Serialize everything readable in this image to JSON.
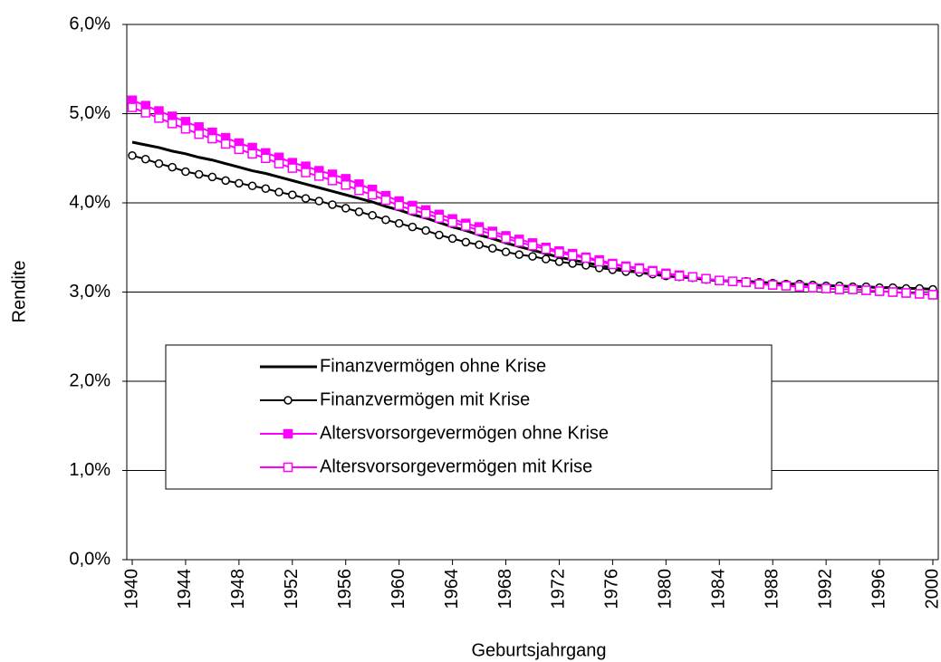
{
  "chart_data": {
    "type": "line",
    "x_label": "Geburtsjahrgang",
    "y_label": "Rendite",
    "x": [
      1940,
      1941,
      1942,
      1943,
      1944,
      1945,
      1946,
      1947,
      1948,
      1949,
      1950,
      1951,
      1952,
      1953,
      1954,
      1955,
      1956,
      1957,
      1958,
      1959,
      1960,
      1961,
      1962,
      1963,
      1964,
      1965,
      1966,
      1967,
      1968,
      1969,
      1970,
      1971,
      1972,
      1973,
      1974,
      1975,
      1976,
      1977,
      1978,
      1979,
      1980,
      1981,
      1982,
      1983,
      1984,
      1985,
      1986,
      1987,
      1988,
      1989,
      1990,
      1991,
      1992,
      1993,
      1994,
      1995,
      1996,
      1997,
      1998,
      1999,
      2000
    ],
    "xlim": [
      1940,
      2000
    ],
    "xticks": [
      1940,
      1944,
      1948,
      1952,
      1956,
      1960,
      1964,
      1968,
      1972,
      1976,
      1980,
      1984,
      1988,
      1992,
      1996,
      2000
    ],
    "ylim": [
      0,
      6
    ],
    "yticks": [
      {
        "value": 0,
        "label": "0,0%"
      },
      {
        "value": 1,
        "label": "1,0%"
      },
      {
        "value": 2,
        "label": "2,0%"
      },
      {
        "value": 3,
        "label": "3,0%"
      },
      {
        "value": 4,
        "label": "4,0%"
      },
      {
        "value": 5,
        "label": "5,0%"
      },
      {
        "value": 6,
        "label": "6,0%"
      }
    ],
    "grid": true,
    "series": [
      {
        "name": "Finanzvermögen ohne Krise",
        "color": "#000000",
        "marker": "none",
        "values": [
          4.68,
          4.65,
          4.62,
          4.58,
          4.55,
          4.51,
          4.48,
          4.44,
          4.4,
          4.36,
          4.33,
          4.29,
          4.25,
          4.21,
          4.17,
          4.13,
          4.09,
          4.05,
          4.01,
          3.96,
          3.92,
          3.87,
          3.83,
          3.78,
          3.73,
          3.69,
          3.64,
          3.6,
          3.55,
          3.51,
          3.47,
          3.43,
          3.39,
          3.36,
          3.33,
          3.3,
          3.27,
          3.25,
          3.22,
          3.2,
          3.18,
          3.17,
          3.16,
          3.14,
          3.13,
          3.12,
          3.12,
          3.11,
          3.1,
          3.09,
          3.09,
          3.08,
          3.07,
          3.07,
          3.06,
          3.06,
          3.05,
          3.05,
          3.04,
          3.04,
          3.03
        ]
      },
      {
        "name": "Finanzvermögen mit Krise",
        "color": "#000000",
        "marker": "circle",
        "values": [
          4.53,
          4.49,
          4.44,
          4.4,
          4.35,
          4.32,
          4.29,
          4.25,
          4.22,
          4.19,
          4.16,
          4.12,
          4.09,
          4.05,
          4.02,
          3.98,
          3.94,
          3.9,
          3.86,
          3.81,
          3.77,
          3.73,
          3.69,
          3.64,
          3.6,
          3.56,
          3.53,
          3.49,
          3.45,
          3.42,
          3.4,
          3.37,
          3.34,
          3.32,
          3.3,
          3.27,
          3.25,
          3.23,
          3.22,
          3.2,
          3.18,
          3.17,
          3.16,
          3.14,
          3.13,
          3.12,
          3.12,
          3.11,
          3.1,
          3.09,
          3.09,
          3.08,
          3.07,
          3.07,
          3.06,
          3.06,
          3.05,
          3.05,
          3.04,
          3.04,
          3.03
        ]
      },
      {
        "name": "Altersvorsorgevermögen ohne Krise",
        "color": "#ff00ff",
        "marker": "square-filled",
        "values": [
          5.15,
          5.09,
          5.03,
          4.97,
          4.91,
          4.85,
          4.79,
          4.73,
          4.67,
          4.62,
          4.56,
          4.51,
          4.45,
          4.41,
          4.36,
          4.32,
          4.27,
          4.21,
          4.15,
          4.08,
          4.02,
          3.97,
          3.92,
          3.87,
          3.82,
          3.77,
          3.73,
          3.68,
          3.63,
          3.59,
          3.55,
          3.5,
          3.46,
          3.43,
          3.39,
          3.36,
          3.32,
          3.29,
          3.27,
          3.24,
          3.21,
          3.19,
          3.17,
          3.15,
          3.13,
          3.12,
          3.11,
          3.09,
          3.08,
          3.07,
          3.06,
          3.05,
          3.04,
          3.03,
          3.03,
          3.02,
          3.01,
          3.0,
          2.99,
          2.98,
          2.97
        ]
      },
      {
        "name": "Altersvorsorgevermögen mit Krise",
        "color": "#ff00ff",
        "marker": "square-open",
        "values": [
          5.07,
          5.01,
          4.95,
          4.89,
          4.83,
          4.77,
          4.72,
          4.66,
          4.6,
          4.55,
          4.5,
          4.44,
          4.39,
          4.34,
          4.3,
          4.25,
          4.2,
          4.14,
          4.09,
          4.03,
          3.97,
          3.92,
          3.88,
          3.83,
          3.78,
          3.74,
          3.69,
          3.65,
          3.6,
          3.56,
          3.52,
          3.48,
          3.44,
          3.41,
          3.38,
          3.34,
          3.31,
          3.28,
          3.26,
          3.23,
          3.2,
          3.18,
          3.17,
          3.15,
          3.13,
          3.12,
          3.11,
          3.09,
          3.08,
          3.07,
          3.06,
          3.05,
          3.04,
          3.03,
          3.03,
          3.02,
          3.01,
          3.0,
          2.99,
          2.98,
          2.97
        ]
      }
    ]
  }
}
